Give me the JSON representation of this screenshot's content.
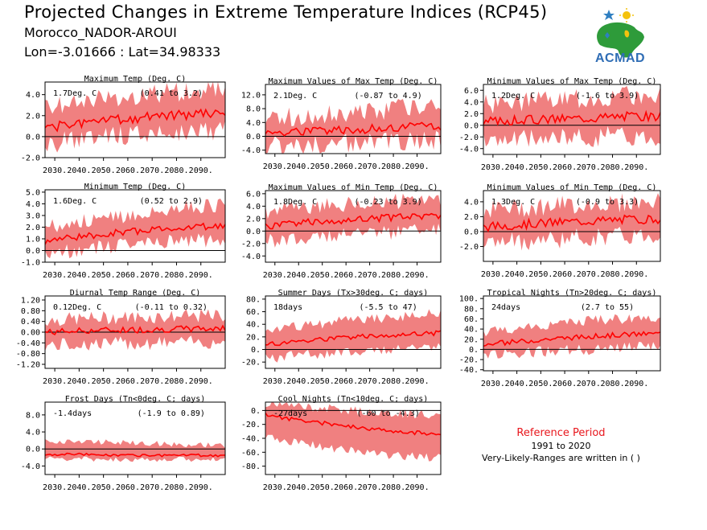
{
  "header": {
    "title": "Projected Changes in Extreme Temperature Indices (RCP45)",
    "station": "Morocco_NADOR-AROUI",
    "coords": "Lon=-3.01666 : Lat=34.98333"
  },
  "logo": {
    "text": "ACMAD",
    "icon": "africa-map-logo"
  },
  "reference": {
    "title": "Reference Period",
    "years": "1991 to 2020",
    "note": "Very-Likely-Ranges are written in ( )"
  },
  "colors": {
    "band": "#f08080",
    "line": "#ff0000",
    "zero": "#000000",
    "ref_title": "#e8171d"
  },
  "chart_data": [
    {
      "type": "line",
      "title": "Maximum Temp (Deg. C)",
      "value": "1.7Deg. C",
      "range": "(0.41 to 3.2)",
      "x_ticks": [
        "2030.",
        "2040.",
        "2050.",
        "2060.",
        "2070.",
        "2080.",
        "2090."
      ],
      "xlim": [
        2026,
        2100
      ],
      "ylim": [
        -2.0,
        5.2
      ],
      "yticks": [
        -2.0,
        0.0,
        2.0,
        4.0
      ],
      "ytick_labels": [
        "-2.0",
        "0.0",
        "2.0",
        "4.0"
      ],
      "mean": [
        [
          2026,
          0.8
        ],
        [
          2040,
          1.3
        ],
        [
          2055,
          1.6
        ],
        [
          2070,
          1.9
        ],
        [
          2085,
          2.1
        ],
        [
          2100,
          2.2
        ]
      ],
      "low": [
        [
          2026,
          -0.7
        ],
        [
          2040,
          -0.3
        ],
        [
          2055,
          0.1
        ],
        [
          2070,
          0.4
        ],
        [
          2085,
          0.5
        ],
        [
          2100,
          0.6
        ]
      ],
      "high": [
        [
          2026,
          2.6
        ],
        [
          2040,
          3.3
        ],
        [
          2055,
          3.6
        ],
        [
          2070,
          4.1
        ],
        [
          2085,
          4.3
        ],
        [
          2100,
          4.4
        ]
      ],
      "amp": 0.45,
      "seed": 1
    },
    {
      "type": "line",
      "title": "Maximum Values of Max Temp (Deg. C)",
      "value": "2.1Deg. C",
      "range": "(-0.87 to 4.9)",
      "x_ticks": [
        "2030.",
        "2040.",
        "2050.",
        "2060.",
        "2070.",
        "2080.",
        "2090."
      ],
      "xlim": [
        2026,
        2100
      ],
      "ylim": [
        -5.0,
        15.0
      ],
      "yticks": [
        -4.0,
        0.0,
        4.0,
        8.0,
        12.0
      ],
      "ytick_labels": [
        "-4.0",
        "0.0",
        "4.0",
        "8.0",
        "12.0"
      ],
      "mean": [
        [
          2026,
          1.0
        ],
        [
          2040,
          1.5
        ],
        [
          2055,
          1.8
        ],
        [
          2070,
          2.1
        ],
        [
          2085,
          2.6
        ],
        [
          2100,
          2.8
        ]
      ],
      "low": [
        [
          2026,
          -3.0
        ],
        [
          2040,
          -2.4
        ],
        [
          2055,
          -2.0
        ],
        [
          2070,
          -1.6
        ],
        [
          2085,
          -1.2
        ],
        [
          2100,
          -1.0
        ]
      ],
      "high": [
        [
          2026,
          5.5
        ],
        [
          2040,
          5.8
        ],
        [
          2055,
          6.2
        ],
        [
          2070,
          6.8
        ],
        [
          2085,
          8.5
        ],
        [
          2100,
          9.0
        ]
      ],
      "amp": 1.3,
      "seed": 2
    },
    {
      "type": "line",
      "title": "Minimum Values of Max Temp (Deg. C)",
      "value": "1.2Deg. C",
      "range": "(-1.6 to 3.9)",
      "x_ticks": [
        "2030.",
        "2040.",
        "2050.",
        "2060.",
        "2070.",
        "2080.",
        "2090."
      ],
      "xlim": [
        2026,
        2100
      ],
      "ylim": [
        -5.0,
        7.0
      ],
      "yticks": [
        -4.0,
        -2.0,
        0.0,
        2.0,
        4.0,
        6.0
      ],
      "ytick_labels": [
        "-4.0",
        "-2.0",
        "0.0",
        "2.0",
        "4.0",
        "6.0"
      ],
      "mean": [
        [
          2026,
          0.6
        ],
        [
          2040,
          0.9
        ],
        [
          2055,
          1.1
        ],
        [
          2070,
          1.3
        ],
        [
          2085,
          1.6
        ],
        [
          2100,
          1.5
        ]
      ],
      "low": [
        [
          2026,
          -2.8
        ],
        [
          2040,
          -2.4
        ],
        [
          2055,
          -2.2
        ],
        [
          2070,
          -2.0
        ],
        [
          2085,
          -1.8
        ],
        [
          2100,
          -2.0
        ]
      ],
      "high": [
        [
          2026,
          3.6
        ],
        [
          2040,
          4.0
        ],
        [
          2055,
          4.3
        ],
        [
          2070,
          4.6
        ],
        [
          2085,
          5.0
        ],
        [
          2100,
          5.2
        ]
      ],
      "amp": 0.8,
      "seed": 3
    },
    {
      "type": "line",
      "title": "Minimum Temp (Deg. C)",
      "value": "1.6Deg. C",
      "range": "(0.52 to 2.9)",
      "x_ticks": [
        "2030.",
        "2040.",
        "2050.",
        "2060.",
        "2070.",
        "2080.",
        "2090."
      ],
      "xlim": [
        2026,
        2100
      ],
      "ylim": [
        -1.0,
        5.2
      ],
      "yticks": [
        -1.0,
        0.0,
        1.0,
        2.0,
        3.0,
        4.0,
        5.0
      ],
      "ytick_labels": [
        "-1.0",
        "0.0",
        "1.0",
        "2.0",
        "3.0",
        "4.0",
        "5.0"
      ],
      "mean": [
        [
          2026,
          0.8
        ],
        [
          2040,
          1.2
        ],
        [
          2055,
          1.5
        ],
        [
          2070,
          1.8
        ],
        [
          2085,
          2.0
        ],
        [
          2100,
          2.1
        ]
      ],
      "low": [
        [
          2026,
          -0.3
        ],
        [
          2040,
          0.1
        ],
        [
          2055,
          0.4
        ],
        [
          2070,
          0.6
        ],
        [
          2085,
          0.8
        ],
        [
          2100,
          0.9
        ]
      ],
      "high": [
        [
          2026,
          2.0
        ],
        [
          2040,
          2.5
        ],
        [
          2055,
          2.9
        ],
        [
          2070,
          3.3
        ],
        [
          2085,
          3.7
        ],
        [
          2100,
          3.9
        ]
      ],
      "amp": 0.3,
      "seed": 4
    },
    {
      "type": "line",
      "title": "Maximum Values of Min Temp (Deg. C)",
      "value": "1.8Deg. C",
      "range": "(-0.23 to 3.9)",
      "x_ticks": [
        "2030.",
        "2040.",
        "2050.",
        "2060.",
        "2070.",
        "2080.",
        "2090."
      ],
      "xlim": [
        2026,
        2100
      ],
      "ylim": [
        -5.0,
        6.5
      ],
      "yticks": [
        -4.0,
        -2.0,
        0.0,
        2.0,
        4.0,
        6.0
      ],
      "ytick_labels": [
        "-4.0",
        "-2.0",
        "0.0",
        "2.0",
        "4.0",
        "6.0"
      ],
      "mean": [
        [
          2026,
          0.7
        ],
        [
          2040,
          1.3
        ],
        [
          2055,
          1.7
        ],
        [
          2070,
          2.0
        ],
        [
          2085,
          2.3
        ],
        [
          2100,
          2.5
        ]
      ],
      "low": [
        [
          2026,
          -1.8
        ],
        [
          2040,
          -1.1
        ],
        [
          2055,
          -0.6
        ],
        [
          2070,
          -0.3
        ],
        [
          2085,
          0.0
        ],
        [
          2100,
          0.2
        ]
      ],
      "high": [
        [
          2026,
          3.2
        ],
        [
          2040,
          3.7
        ],
        [
          2055,
          4.1
        ],
        [
          2070,
          4.5
        ],
        [
          2085,
          4.8
        ],
        [
          2100,
          5.0
        ]
      ],
      "amp": 0.6,
      "seed": 5
    },
    {
      "type": "line",
      "title": "Minimum Values of Min Temp (Deg. C)",
      "value": "1.3Deg. C",
      "range": "(-0.9 to 3.3)",
      "x_ticks": [
        "2030.",
        "2040.",
        "2050.",
        "2060.",
        "2070.",
        "2080.",
        "2090."
      ],
      "xlim": [
        2026,
        2100
      ],
      "ylim": [
        -4.0,
        5.5
      ],
      "yticks": [
        -2.0,
        0.0,
        2.0,
        4.0
      ],
      "ytick_labels": [
        "-2.0",
        "0.0",
        "2.0",
        "4.0"
      ],
      "mean": [
        [
          2026,
          0.6
        ],
        [
          2040,
          0.9
        ],
        [
          2055,
          1.2
        ],
        [
          2070,
          1.4
        ],
        [
          2085,
          1.6
        ],
        [
          2100,
          1.7
        ]
      ],
      "low": [
        [
          2026,
          -1.7
        ],
        [
          2040,
          -1.3
        ],
        [
          2055,
          -1.0
        ],
        [
          2070,
          -0.8
        ],
        [
          2085,
          -0.6
        ],
        [
          2100,
          -0.5
        ]
      ],
      "high": [
        [
          2026,
          2.9
        ],
        [
          2040,
          3.2
        ],
        [
          2055,
          3.5
        ],
        [
          2070,
          3.7
        ],
        [
          2085,
          3.9
        ],
        [
          2100,
          4.0
        ]
      ],
      "amp": 0.6,
      "seed": 6
    },
    {
      "type": "line",
      "title": "Diurnal Temp Range (Deg. C)",
      "value": "0.12Deg. C",
      "range": "(-0.11 to 0.32)",
      "x_ticks": [
        "2030.",
        "2040.",
        "2050.",
        "2060.",
        "2070.",
        "2080.",
        "2090."
      ],
      "xlim": [
        2026,
        2100
      ],
      "ylim": [
        -1.35,
        1.35
      ],
      "yticks": [
        -1.2,
        -0.8,
        -0.4,
        0.0,
        0.4,
        0.8,
        1.2
      ],
      "ytick_labels": [
        "-1.20",
        "-0.80",
        "-0.40",
        "0.00",
        "0.40",
        "0.80",
        "1.20"
      ],
      "mean": [
        [
          2026,
          0.0
        ],
        [
          2040,
          0.05
        ],
        [
          2055,
          0.08
        ],
        [
          2070,
          0.1
        ],
        [
          2085,
          0.12
        ],
        [
          2100,
          0.14
        ]
      ],
      "low": [
        [
          2026,
          -0.5
        ],
        [
          2040,
          -0.45
        ],
        [
          2055,
          -0.42
        ],
        [
          2070,
          -0.4
        ],
        [
          2085,
          -0.38
        ],
        [
          2100,
          -0.35
        ]
      ],
      "high": [
        [
          2026,
          0.45
        ],
        [
          2040,
          0.5
        ],
        [
          2055,
          0.55
        ],
        [
          2070,
          0.58
        ],
        [
          2085,
          0.6
        ],
        [
          2100,
          0.62
        ]
      ],
      "amp": 0.12,
      "seed": 7
    },
    {
      "type": "line",
      "title": "Summer Days (Tx>30deg. C; days)",
      "value": "18days",
      "range": "(-5.5 to 47)",
      "x_ticks": [
        "2030.",
        "2040.",
        "2050.",
        "2060.",
        "2070.",
        "2080.",
        "2090."
      ],
      "xlim": [
        2026,
        2100
      ],
      "ylim": [
        -30,
        85
      ],
      "yticks": [
        -20,
        0,
        20,
        40,
        60,
        80
      ],
      "ytick_labels": [
        "-20.",
        "0.",
        "20.",
        "40.",
        "60.",
        "80."
      ],
      "mean": [
        [
          2026,
          8
        ],
        [
          2040,
          13
        ],
        [
          2055,
          17
        ],
        [
          2070,
          21
        ],
        [
          2085,
          24
        ],
        [
          2100,
          26
        ]
      ],
      "low": [
        [
          2026,
          -14
        ],
        [
          2040,
          -9
        ],
        [
          2055,
          -5
        ],
        [
          2070,
          -2
        ],
        [
          2085,
          1
        ],
        [
          2100,
          3
        ]
      ],
      "high": [
        [
          2026,
          30
        ],
        [
          2040,
          37
        ],
        [
          2055,
          43
        ],
        [
          2070,
          49
        ],
        [
          2085,
          54
        ],
        [
          2100,
          57
        ]
      ],
      "amp": 4,
      "seed": 8
    },
    {
      "type": "line",
      "title": "Tropical Nights (Tn>20deg. C; days)",
      "value": "24days",
      "range": "(2.7 to 55)",
      "x_ticks": [
        "2030.",
        "2040.",
        "2050.",
        "2060.",
        "2070.",
        "2080.",
        "2090."
      ],
      "xlim": [
        2026,
        2100
      ],
      "ylim": [
        -42,
        105
      ],
      "yticks": [
        -40,
        -20,
        0,
        20,
        40,
        60,
        80,
        100
      ],
      "ytick_labels": [
        "-40.",
        "-20.",
        "0.",
        "20.",
        "40.",
        "60.",
        "80.",
        "100."
      ],
      "mean": [
        [
          2026,
          9
        ],
        [
          2040,
          15
        ],
        [
          2055,
          21
        ],
        [
          2070,
          25
        ],
        [
          2085,
          29
        ],
        [
          2100,
          31
        ]
      ],
      "low": [
        [
          2026,
          -12
        ],
        [
          2040,
          -7
        ],
        [
          2055,
          -3
        ],
        [
          2070,
          0
        ],
        [
          2085,
          3
        ],
        [
          2100,
          5
        ]
      ],
      "high": [
        [
          2026,
          33
        ],
        [
          2040,
          42
        ],
        [
          2055,
          50
        ],
        [
          2070,
          56
        ],
        [
          2085,
          61
        ],
        [
          2100,
          64
        ]
      ],
      "amp": 5,
      "seed": 9
    },
    {
      "type": "line",
      "title": "Frost Days (Tn<0deg. C; days)",
      "value": "-1.4days",
      "range": "(-1.9 to 0.89)",
      "x_ticks": [
        "2030.",
        "2040.",
        "2050.",
        "2060.",
        "2070.",
        "2080.",
        "2090."
      ],
      "xlim": [
        2026,
        2100
      ],
      "ylim": [
        -6.0,
        11.0
      ],
      "yticks": [
        -4.0,
        0.0,
        4.0,
        8.0
      ],
      "ytick_labels": [
        "-4.0",
        "0.0",
        "4.0",
        "8.0"
      ],
      "mean": [
        [
          2026,
          -1.2
        ],
        [
          2040,
          -1.3
        ],
        [
          2055,
          -1.4
        ],
        [
          2070,
          -1.5
        ],
        [
          2085,
          -1.5
        ],
        [
          2100,
          -1.5
        ]
      ],
      "low": [
        [
          2026,
          -2.4
        ],
        [
          2040,
          -2.4
        ],
        [
          2055,
          -2.4
        ],
        [
          2070,
          -2.4
        ],
        [
          2085,
          -2.4
        ],
        [
          2100,
          -2.4
        ]
      ],
      "high": [
        [
          2026,
          1.8
        ],
        [
          2040,
          1.8
        ],
        [
          2055,
          1.6
        ],
        [
          2070,
          1.3
        ],
        [
          2085,
          1.0
        ],
        [
          2100,
          0.8
        ]
      ],
      "amp": 0.3,
      "seed": 10
    },
    {
      "type": "line",
      "title": "Cool Nights (Tn<10deg. C; days)",
      "value": "-27days",
      "range": "(-60 to -4.3)",
      "x_ticks": [
        "2030.",
        "2040.",
        "2050.",
        "2060.",
        "2070.",
        "2080.",
        "2090."
      ],
      "xlim": [
        2026,
        2100
      ],
      "ylim": [
        -92,
        12
      ],
      "yticks": [
        -80,
        -60,
        -40,
        -20,
        0
      ],
      "ytick_labels": [
        "-80.",
        "-60.",
        "-40.",
        "-20.",
        "0."
      ],
      "mean": [
        [
          2026,
          -6
        ],
        [
          2040,
          -14
        ],
        [
          2055,
          -20
        ],
        [
          2070,
          -26
        ],
        [
          2085,
          -31
        ],
        [
          2100,
          -34
        ]
      ],
      "low": [
        [
          2026,
          -38
        ],
        [
          2040,
          -46
        ],
        [
          2055,
          -55
        ],
        [
          2070,
          -62
        ],
        [
          2085,
          -66
        ],
        [
          2100,
          -68
        ]
      ],
      "high": [
        [
          2026,
          10
        ],
        [
          2040,
          6
        ],
        [
          2055,
          2
        ],
        [
          2070,
          -2
        ],
        [
          2085,
          -5
        ],
        [
          2100,
          -7
        ]
      ],
      "amp": 3,
      "seed": 11
    }
  ]
}
